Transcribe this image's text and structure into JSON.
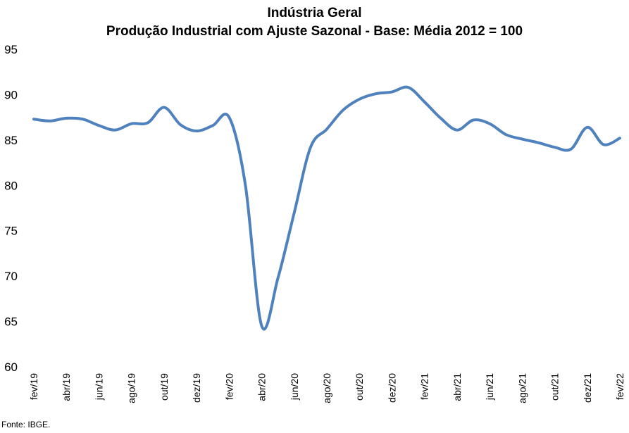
{
  "chart_data": {
    "type": "line",
    "title": "Indústria Geral",
    "subtitle": "Produção Industrial com Ajuste Sazonal - Base: Média 2012 = 100",
    "xlabel": "",
    "ylabel": "",
    "ylim": [
      60,
      95
    ],
    "yticks": [
      60,
      65,
      70,
      75,
      80,
      85,
      90,
      95
    ],
    "grid": false,
    "legend": "none",
    "line_color": "#4f81bd",
    "x": [
      "fev/19",
      "mar/19",
      "abr/19",
      "mai/19",
      "jun/19",
      "jul/19",
      "ago/19",
      "set/19",
      "out/19",
      "nov/19",
      "dez/19",
      "jan/20",
      "fev/20",
      "mar/20",
      "abr/20",
      "mai/20",
      "jun/20",
      "jul/20",
      "ago/20",
      "set/20",
      "out/20",
      "nov/20",
      "dez/20",
      "jan/21",
      "fev/21",
      "mar/21",
      "abr/21",
      "mai/21",
      "jun/21",
      "jul/21",
      "ago/21",
      "set/21",
      "out/21",
      "nov/21",
      "dez/21",
      "jan/22",
      "fev/22"
    ],
    "tick_labels": [
      "fev/19",
      "abr/19",
      "jun/19",
      "ago/19",
      "out/19",
      "dez/19",
      "fev/20",
      "abr/20",
      "jun/20",
      "ago/20",
      "out/20",
      "dez/20",
      "fev/21",
      "abr/21",
      "jun/21",
      "ago/21",
      "out/21",
      "dez/21",
      "fev/22"
    ],
    "series": [
      {
        "values": [
          87.3,
          87.1,
          87.4,
          87.3,
          86.6,
          86.1,
          86.8,
          86.9,
          88.6,
          86.7,
          86.0,
          86.6,
          87.5,
          80.0,
          64.5,
          69.8,
          77.0,
          84.2,
          86.2,
          88.3,
          89.5,
          90.1,
          90.3,
          90.8,
          89.2,
          87.4,
          86.1,
          87.2,
          86.8,
          85.6,
          85.1,
          84.7,
          84.2,
          84.0,
          86.4,
          84.5,
          85.2
        ]
      }
    ]
  },
  "source": "Fonte: IBGE."
}
